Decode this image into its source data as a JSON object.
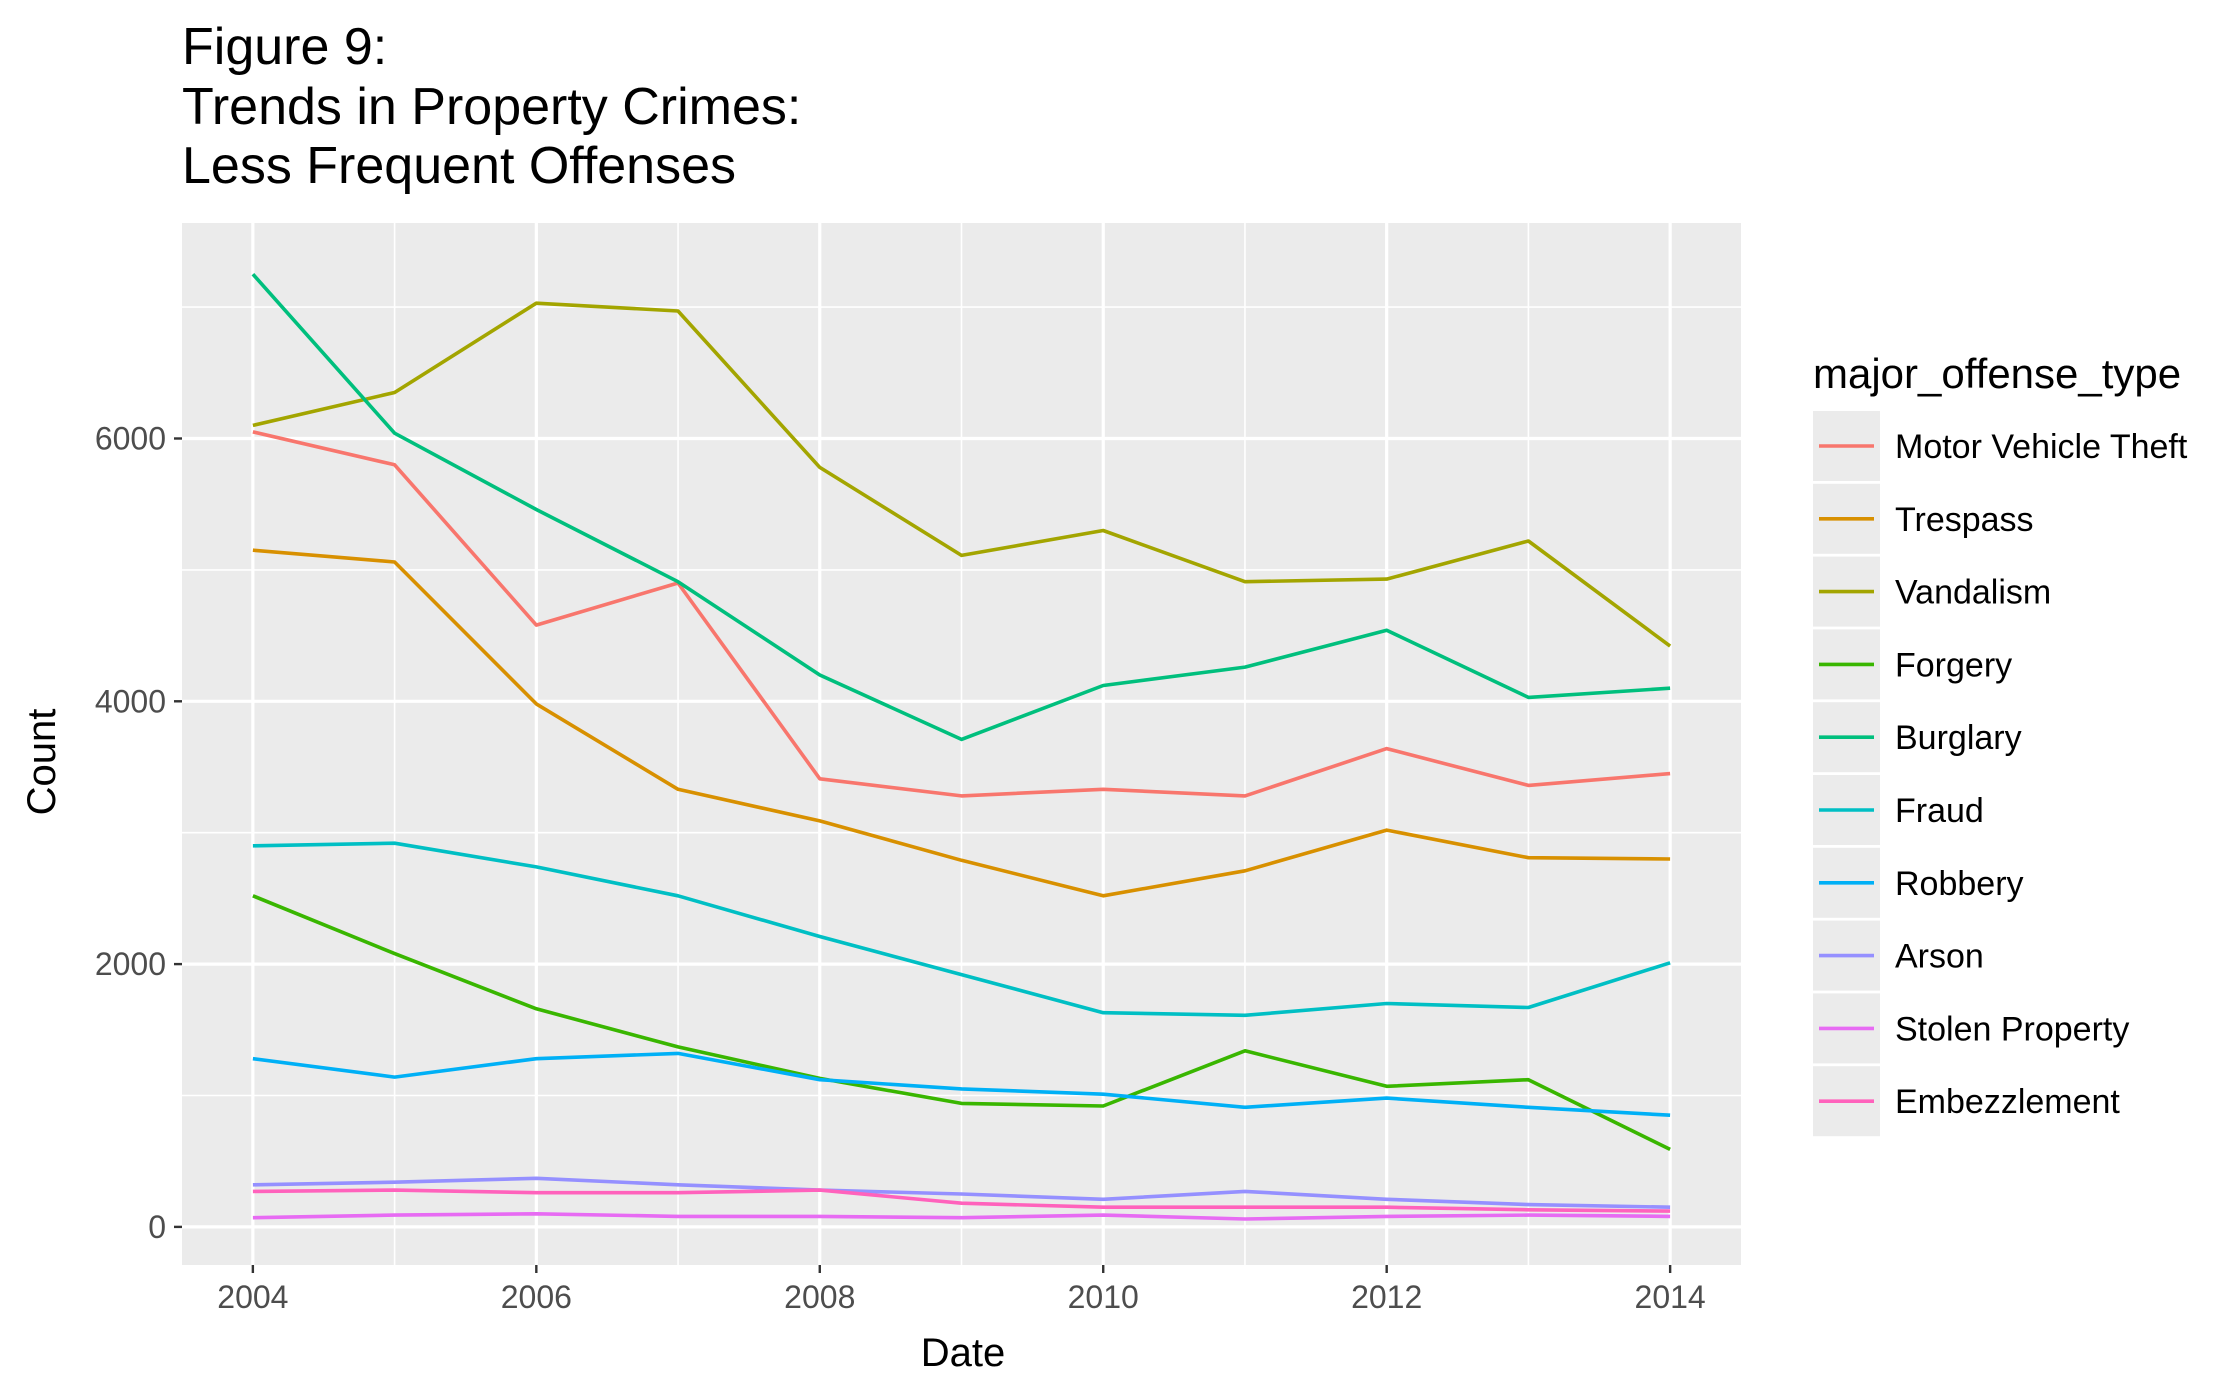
{
  "chart_data": {
    "type": "line",
    "title_lines": [
      "Figure 9:",
      "Trends in Property Crimes:",
      "Less Frequent Offenses"
    ],
    "xlabel": "Date",
    "ylabel": "Count",
    "x": [
      2004,
      2005,
      2006,
      2007,
      2008,
      2009,
      2010,
      2011,
      2012,
      2013,
      2014
    ],
    "x_ticks": [
      2004,
      2006,
      2008,
      2010,
      2012,
      2014
    ],
    "y_ticks": [
      0,
      2000,
      4000,
      6000
    ],
    "xlim": [
      2003.5,
      2014.5
    ],
    "ylim": [
      -290,
      7640
    ],
    "grid": true,
    "panel_background": "#ebebeb",
    "legend_title": "major_offense_type",
    "legend_position": "right",
    "series": [
      {
        "name": "Motor Vehicle Theft",
        "color": "#F8766D",
        "values": [
          6050,
          5800,
          4580,
          4900,
          3410,
          3280,
          3330,
          3280,
          3640,
          3360,
          3450
        ]
      },
      {
        "name": "Trespass",
        "color": "#D89000",
        "values": [
          5150,
          5060,
          3980,
          3330,
          3090,
          2790,
          2520,
          2710,
          3020,
          2810,
          2800
        ]
      },
      {
        "name": "Vandalism",
        "color": "#A3A500",
        "values": [
          6100,
          6350,
          7030,
          6970,
          5780,
          5110,
          5300,
          4910,
          4930,
          5220,
          4420
        ]
      },
      {
        "name": "Forgery",
        "color": "#39B600",
        "values": [
          2520,
          2080,
          1660,
          1370,
          1130,
          940,
          920,
          1340,
          1070,
          1120,
          590
        ]
      },
      {
        "name": "Burglary",
        "color": "#00BF7D",
        "values": [
          7250,
          6040,
          5460,
          4910,
          4200,
          3710,
          4120,
          4260,
          4540,
          4030,
          4100
        ]
      },
      {
        "name": "Fraud",
        "color": "#00BFC4",
        "values": [
          2900,
          2920,
          2740,
          2520,
          2210,
          1920,
          1630,
          1610,
          1700,
          1670,
          2010
        ]
      },
      {
        "name": "Robbery",
        "color": "#00B0F6",
        "values": [
          1280,
          1140,
          1280,
          1320,
          1120,
          1050,
          1010,
          910,
          980,
          910,
          850
        ]
      },
      {
        "name": "Arson",
        "color": "#9590FF",
        "values": [
          320,
          340,
          370,
          320,
          280,
          250,
          210,
          270,
          210,
          170,
          150
        ]
      },
      {
        "name": "Stolen Property",
        "color": "#E76BF3",
        "values": [
          70,
          90,
          100,
          80,
          80,
          70,
          90,
          60,
          80,
          90,
          80
        ]
      },
      {
        "name": "Embezzlement",
        "color": "#FF62BC",
        "values": [
          270,
          280,
          260,
          260,
          280,
          180,
          150,
          150,
          150,
          130,
          120
        ]
      }
    ]
  }
}
